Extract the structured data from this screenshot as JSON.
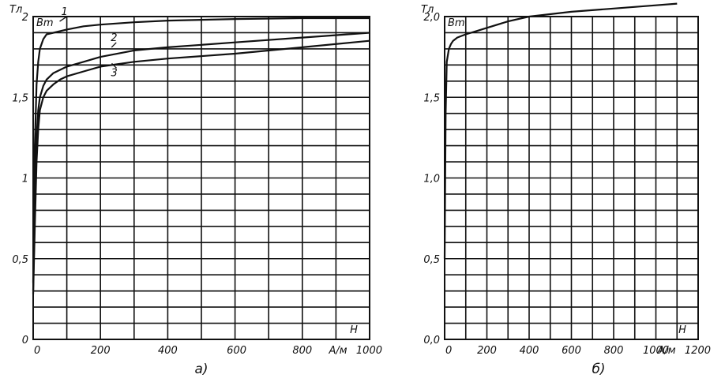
{
  "chart_data": [
    {
      "type": "line",
      "panel_label": "а)",
      "ylabel": "Тл",
      "xlabel": "Н",
      "x_unit": "А/м",
      "y_variable": "Вm",
      "xlim": [
        0,
        1000
      ],
      "ylim": [
        0,
        2
      ],
      "x_ticks": [
        0,
        200,
        400,
        800,
        1000
      ],
      "x_tick_labels": [
        "0",
        "200",
        "400",
        "800",
        "1000"
      ],
      "x_tick_label_extra": {
        "value": 600,
        "text": "600"
      },
      "y_ticks": [
        0,
        0.5,
        1,
        1.5,
        2
      ],
      "y_tick_labels": [
        "0",
        "0,5",
        "1",
        "1,5",
        "2"
      ],
      "grid": true,
      "series": [
        {
          "name": "1",
          "x": [
            0,
            5,
            10,
            15,
            20,
            30,
            40,
            60,
            80,
            100,
            150,
            200,
            300,
            400,
            600,
            800,
            1000
          ],
          "y": [
            0.35,
            1.2,
            1.58,
            1.72,
            1.8,
            1.86,
            1.89,
            1.9,
            1.91,
            1.92,
            1.94,
            1.95,
            1.965,
            1.975,
            1.985,
            1.99,
            1.99
          ]
        },
        {
          "name": "2",
          "x": [
            0,
            5,
            10,
            15,
            20,
            30,
            40,
            60,
            80,
            100,
            150,
            200,
            300,
            400,
            600,
            800,
            1000
          ],
          "y": [
            0.3,
            0.8,
            1.25,
            1.42,
            1.5,
            1.57,
            1.61,
            1.65,
            1.67,
            1.69,
            1.72,
            1.75,
            1.79,
            1.81,
            1.84,
            1.87,
            1.9
          ]
        },
        {
          "name": "3",
          "x": [
            0,
            5,
            10,
            15,
            20,
            30,
            40,
            60,
            80,
            100,
            150,
            200,
            300,
            400,
            600,
            800,
            1000
          ],
          "y": [
            0.28,
            0.7,
            1.1,
            1.3,
            1.42,
            1.5,
            1.54,
            1.58,
            1.61,
            1.63,
            1.66,
            1.69,
            1.72,
            1.74,
            1.77,
            1.81,
            1.85
          ]
        }
      ]
    },
    {
      "type": "line",
      "panel_label": "б)",
      "ylabel": "Тл",
      "xlabel": "Н",
      "x_unit": "А/м",
      "y_variable": "Вm",
      "xlim": [
        0,
        1200
      ],
      "ylim": [
        0,
        2
      ],
      "x_ticks": [
        0,
        200,
        400,
        600,
        800,
        1000,
        1200
      ],
      "x_tick_labels": [
        "0",
        "200",
        "400",
        "600",
        "800",
        "1000",
        "1200"
      ],
      "y_ticks": [
        0,
        0.5,
        1,
        1.5,
        2
      ],
      "y_tick_labels": [
        "0,0",
        "0,5",
        "1,0",
        "1,5",
        "2,0"
      ],
      "grid": true,
      "series": [
        {
          "x": [
            0,
            5,
            10,
            20,
            30,
            40,
            60,
            80,
            100,
            150,
            200,
            300,
            400,
            600,
            800,
            1000,
            1100
          ],
          "y": [
            0.5,
            1.4,
            1.72,
            1.8,
            1.83,
            1.85,
            1.87,
            1.88,
            1.89,
            1.91,
            1.93,
            1.97,
            2.0,
            2.03,
            2.05,
            2.07,
            2.08
          ]
        }
      ]
    }
  ]
}
